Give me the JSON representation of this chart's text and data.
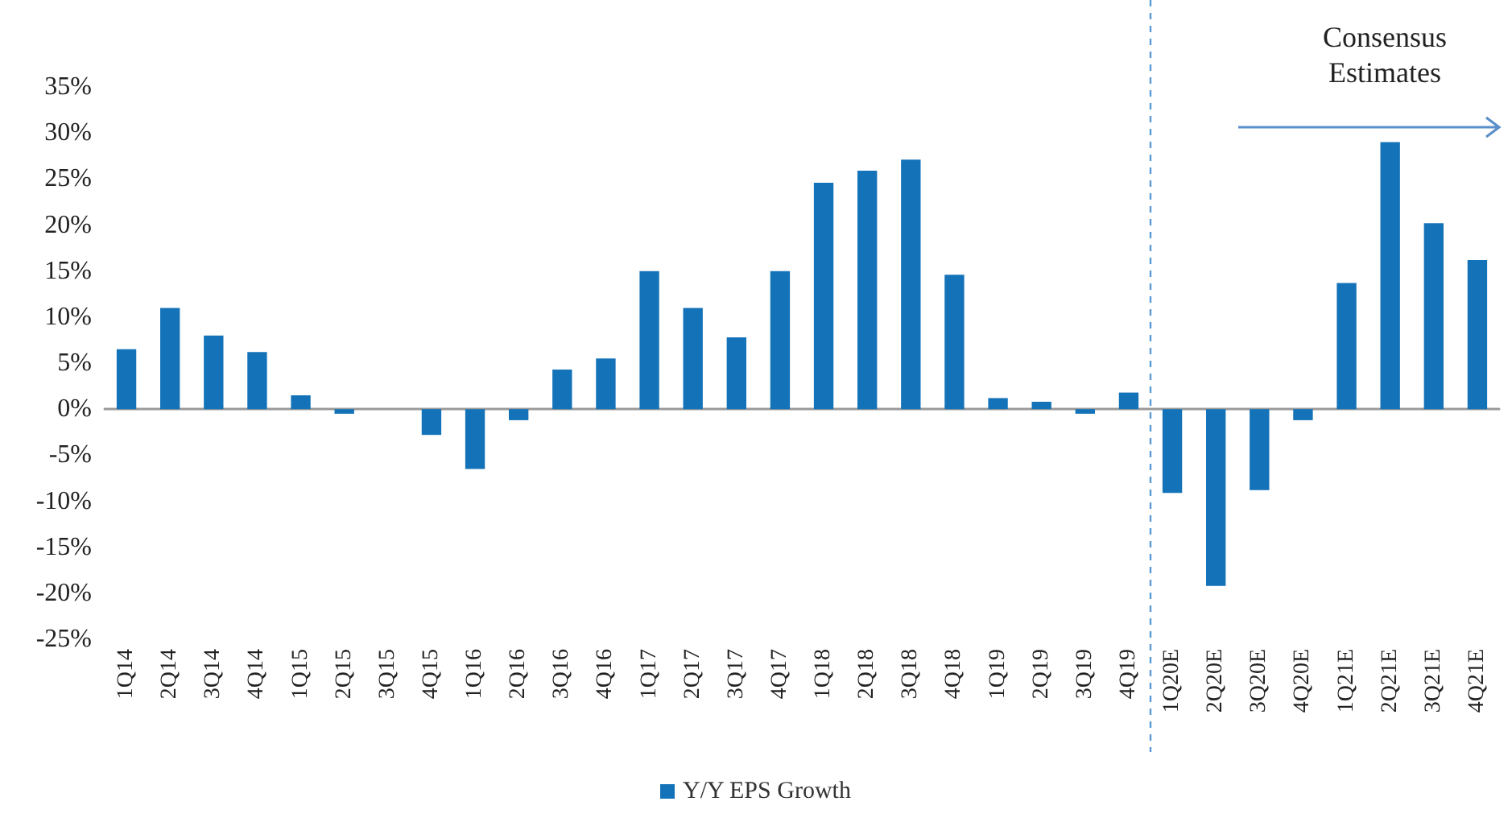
{
  "chart_data": {
    "type": "bar",
    "categories": [
      "1Q14",
      "2Q14",
      "3Q14",
      "4Q14",
      "1Q15",
      "2Q15",
      "3Q15",
      "4Q15",
      "1Q16",
      "2Q16",
      "3Q16",
      "4Q16",
      "1Q17",
      "2Q17",
      "3Q17",
      "4Q17",
      "1Q18",
      "2Q18",
      "3Q18",
      "4Q18",
      "1Q19",
      "2Q19",
      "3Q19",
      "4Q19",
      "1Q20E",
      "2Q20E",
      "3Q20E",
      "4Q20E",
      "1Q21E",
      "2Q21E",
      "3Q21E",
      "4Q21E"
    ],
    "series": [
      {
        "name": "Y/Y EPS Growth",
        "color": "#1473b8",
        "values": [
          6.5,
          11,
          8,
          6.2,
          1.5,
          -0.5,
          0,
          -2.8,
          -6.5,
          -1.2,
          4.3,
          5.5,
          15,
          11,
          7.8,
          15,
          24.6,
          25.9,
          27.1,
          14.6,
          1.2,
          0.8,
          -0.5,
          1.8,
          -9.1,
          -19.2,
          -8.8,
          -1.2,
          13.7,
          29,
          20.2,
          16.2
        ]
      }
    ],
    "ylim": [
      -25,
      35
    ],
    "yticks": [
      {
        "value": -25,
        "label": "-25%"
      },
      {
        "value": -20,
        "label": "-20%"
      },
      {
        "value": -15,
        "label": "-15%"
      },
      {
        "value": -10,
        "label": "-10%"
      },
      {
        "value": -5,
        "label": "-5%"
      },
      {
        "value": 0,
        "label": "0%"
      },
      {
        "value": 5,
        "label": "5%"
      },
      {
        "value": 10,
        "label": "10%"
      },
      {
        "value": 15,
        "label": "15%"
      },
      {
        "value": 20,
        "label": "20%"
      },
      {
        "value": 25,
        "label": "25%"
      },
      {
        "value": 30,
        "label": "30%"
      },
      {
        "value": 35,
        "label": "35%"
      }
    ],
    "ref_lines": [
      {
        "axis": "x",
        "value": "1Q20E",
        "color": "#5b9bd5",
        "line_style": "dashed"
      }
    ],
    "annotations": [
      "Consensus Estimates"
    ],
    "grid": false,
    "legend": "bottom"
  }
}
